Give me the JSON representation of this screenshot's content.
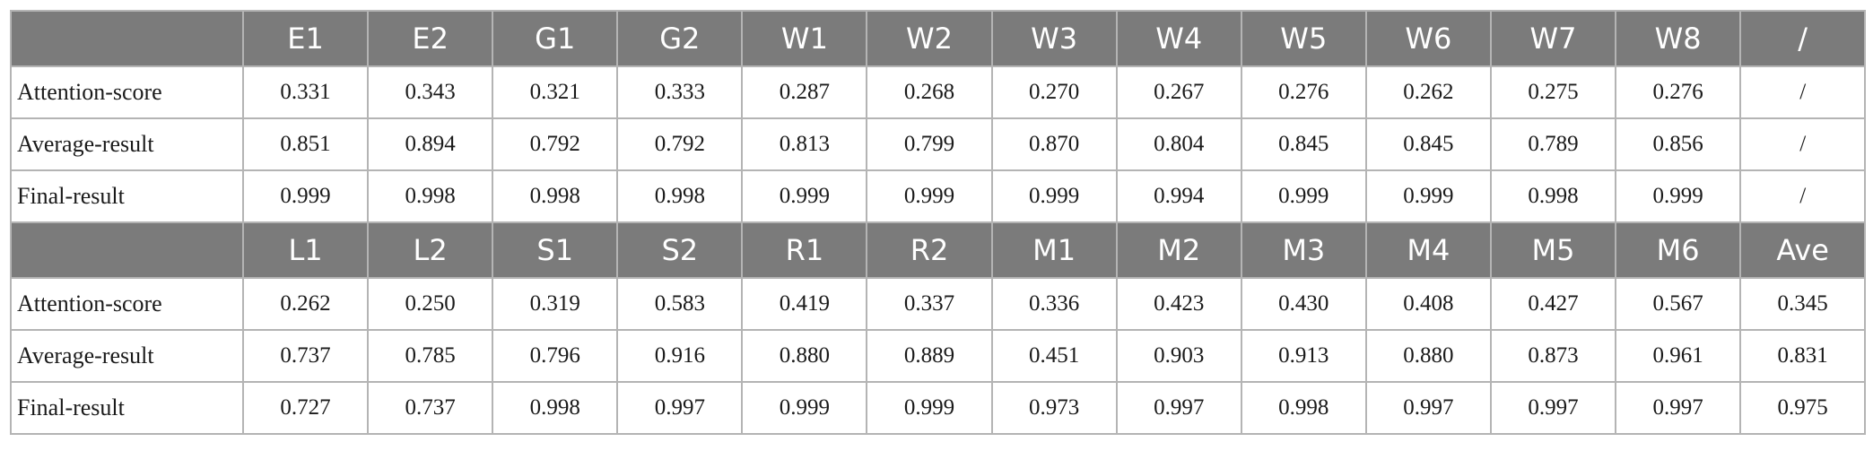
{
  "table": {
    "blocks": [
      {
        "headers": [
          "E1",
          "E2",
          "G1",
          "G2",
          "W1",
          "W2",
          "W3",
          "W4",
          "W5",
          "W6",
          "W7",
          "W8",
          "/"
        ],
        "rows": [
          {
            "label": "Attention-score",
            "values": [
              "0.331",
              "0.343",
              "0.321",
              "0.333",
              "0.287",
              "0.268",
              "0.270",
              "0.267",
              "0.276",
              "0.262",
              "0.275",
              "0.276",
              "/"
            ]
          },
          {
            "label": "Average-result",
            "values": [
              "0.851",
              "0.894",
              "0.792",
              "0.792",
              "0.813",
              "0.799",
              "0.870",
              "0.804",
              "0.845",
              "0.845",
              "0.789",
              "0.856",
              "/"
            ]
          },
          {
            "label": "Final-result",
            "values": [
              "0.999",
              "0.998",
              "0.998",
              "0.998",
              "0.999",
              "0.999",
              "0.999",
              "0.994",
              "0.999",
              "0.999",
              "0.998",
              "0.999",
              "/"
            ]
          }
        ]
      },
      {
        "headers": [
          "L1",
          "L2",
          "S1",
          "S2",
          "R1",
          "R2",
          "M1",
          "M2",
          "M3",
          "M4",
          "M5",
          "M6",
          "Ave"
        ],
        "rows": [
          {
            "label": "Attention-score",
            "values": [
              "0.262",
              "0.250",
              "0.319",
              "0.583",
              "0.419",
              "0.337",
              "0.336",
              "0.423",
              "0.430",
              "0.408",
              "0.427",
              "0.567",
              "0.345"
            ]
          },
          {
            "label": "Average-result",
            "values": [
              "0.737",
              "0.785",
              "0.796",
              "0.916",
              "0.880",
              "0.889",
              "0.451",
              "0.903",
              "0.913",
              "0.880",
              "0.873",
              "0.961",
              "0.831"
            ]
          },
          {
            "label": "Final-result",
            "values": [
              "0.727",
              "0.737",
              "0.998",
              "0.997",
              "0.999",
              "0.999",
              "0.973",
              "0.997",
              "0.998",
              "0.997",
              "0.997",
              "0.997",
              "0.975"
            ]
          }
        ]
      }
    ]
  }
}
